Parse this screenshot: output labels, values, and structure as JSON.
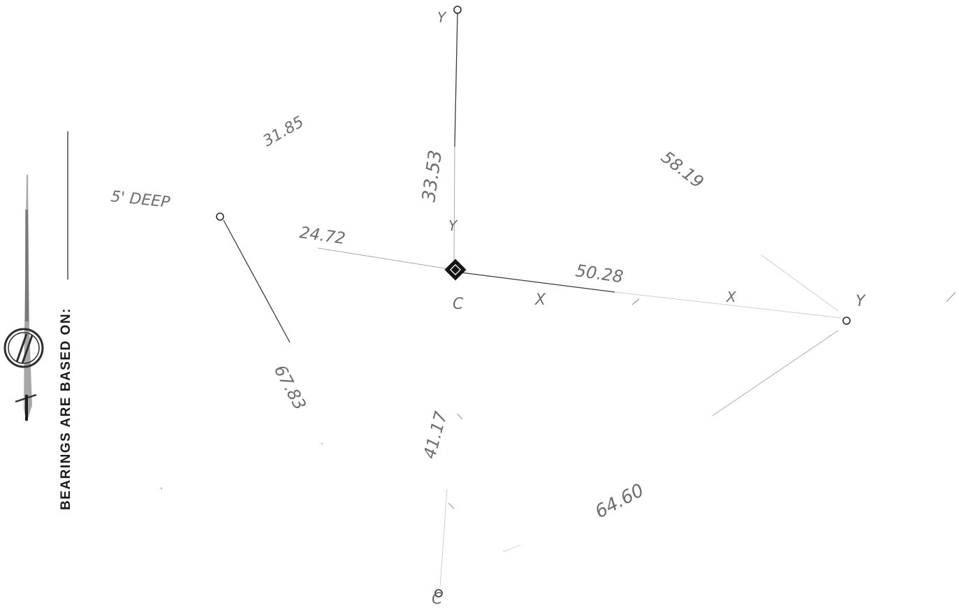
{
  "diagram": {
    "bearing_note": "BEARINGS ARE BASED ON:",
    "labels": {
      "depth": "5' DEEP",
      "d_3185": "31.85",
      "d_3553": "33.53",
      "d_2472": "24.72",
      "d_5819": "58.19",
      "d_5028": "50.28",
      "d_6783": "67.83",
      "d_4117": "41.17",
      "d_6460": "64.60"
    },
    "marks": {
      "y_top": "Y",
      "y_mid": "Y",
      "y_right": "Y",
      "x_mid": "X",
      "x_right": "X",
      "c_center": "C",
      "c_bottom": "C"
    },
    "colors": {
      "ink": "#2a2a2a",
      "pencil": "#6e6e6e",
      "faint": "#a8a8a8"
    },
    "icons": {
      "north_arrow": "north-arrow-icon",
      "center_marker": "survey-monument-icon"
    }
  }
}
